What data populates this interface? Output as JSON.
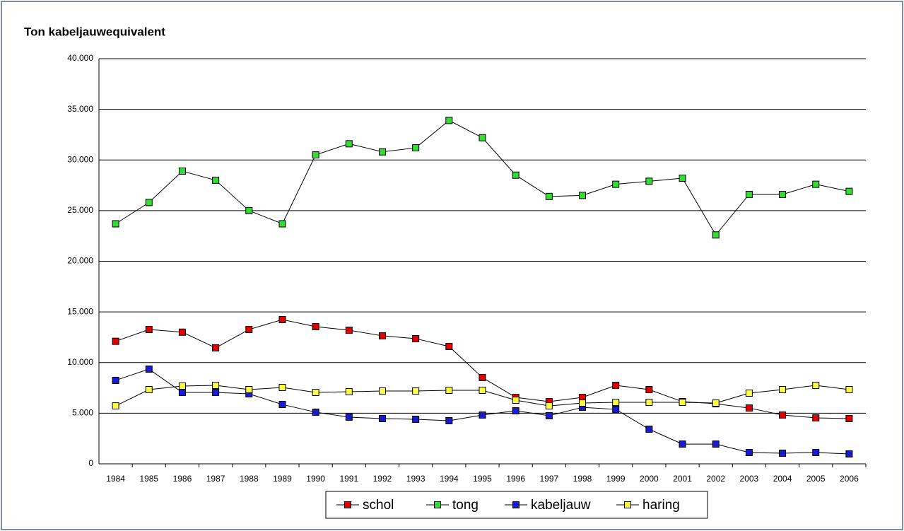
{
  "chart_data": {
    "type": "line",
    "title": "Ton kabeljauwequivalent",
    "categories": [
      "1984",
      "1985",
      "1986",
      "1987",
      "1988",
      "1989",
      "1990",
      "1991",
      "1992",
      "1993",
      "1994",
      "1995",
      "1996",
      "1997",
      "1998",
      "1999",
      "2000",
      "2001",
      "2002",
      "2003",
      "2004",
      "2005",
      "2006"
    ],
    "series": [
      {
        "name": "schol",
        "color": "#e00000",
        "values": [
          12100,
          13260,
          13000,
          11450,
          13260,
          14240,
          13540,
          13190,
          12640,
          12360,
          11590,
          8520,
          6560,
          6140,
          6560,
          7750,
          7330,
          6140,
          5930,
          5510,
          4820,
          4540,
          4470
        ]
      },
      {
        "name": "tong",
        "color": "#33dd33",
        "values": [
          23700,
          25800,
          28900,
          28000,
          25000,
          23700,
          30500,
          31600,
          30800,
          31200,
          33900,
          32200,
          28500,
          26400,
          26500,
          27600,
          27900,
          28200,
          22600,
          26600,
          26600,
          27600,
          26900
        ]
      },
      {
        "name": "kabeljauw",
        "color": "#1a1ad0",
        "values": [
          8240,
          9350,
          7050,
          7050,
          6910,
          5860,
          5100,
          4610,
          4470,
          4400,
          4260,
          4820,
          5240,
          4750,
          5580,
          5380,
          3420,
          1950,
          1950,
          1120,
          1050,
          1120,
          980
        ]
      },
      {
        "name": "haring",
        "color": "#ffff44",
        "values": [
          5720,
          7330,
          7680,
          7750,
          7330,
          7540,
          7050,
          7120,
          7190,
          7190,
          7260,
          7260,
          6280,
          5720,
          6000,
          6070,
          6070,
          6070,
          6000,
          6980,
          7330,
          7750,
          7330
        ]
      }
    ],
    "ylim": [
      0,
      40000
    ],
    "yticks": [
      0,
      {
        "value": 5000,
        "label": "5.000"
      },
      {
        "value": 10000,
        "label": "10.000"
      },
      {
        "value": 15000,
        "label": "15.000"
      },
      {
        "value": 20000,
        "label": "20.000"
      },
      {
        "value": 25000,
        "label": "25.000"
      },
      {
        "value": 30000,
        "label": "30.000"
      },
      {
        "value": 35000,
        "label": "35.000"
      },
      {
        "value": 40000,
        "label": "40.000"
      }
    ],
    "grid": true,
    "legend": "bottom"
  }
}
